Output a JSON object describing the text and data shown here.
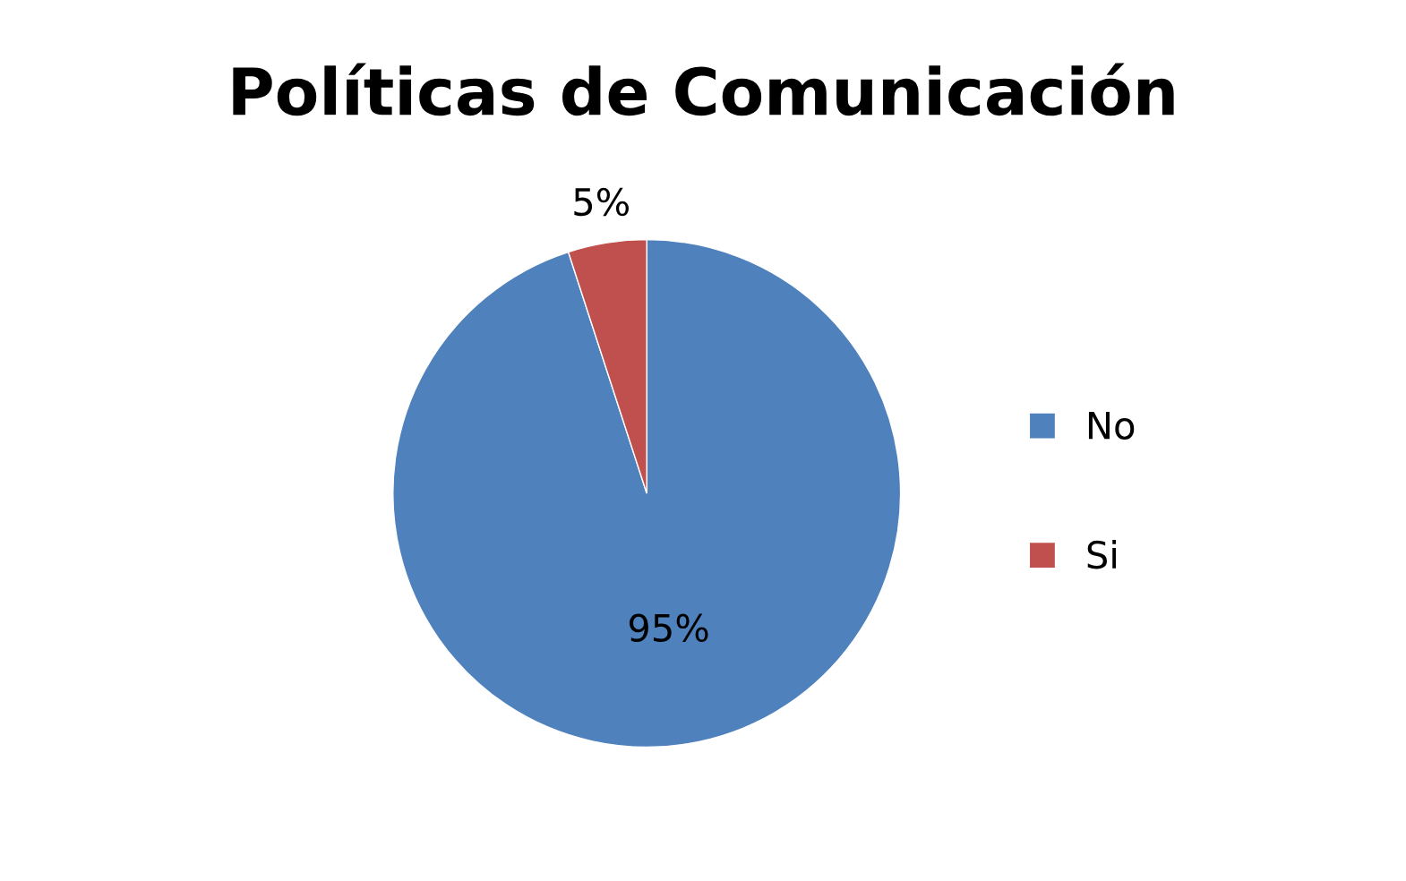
{
  "chart_data": {
    "type": "pie",
    "title": "Políticas de Comunicación",
    "categories": [
      "No",
      "Si"
    ],
    "values": [
      95,
      5
    ],
    "colors": [
      "#4f81bd",
      "#c0504d"
    ],
    "value_labels": [
      "95%",
      "5%"
    ],
    "legend": "right"
  }
}
